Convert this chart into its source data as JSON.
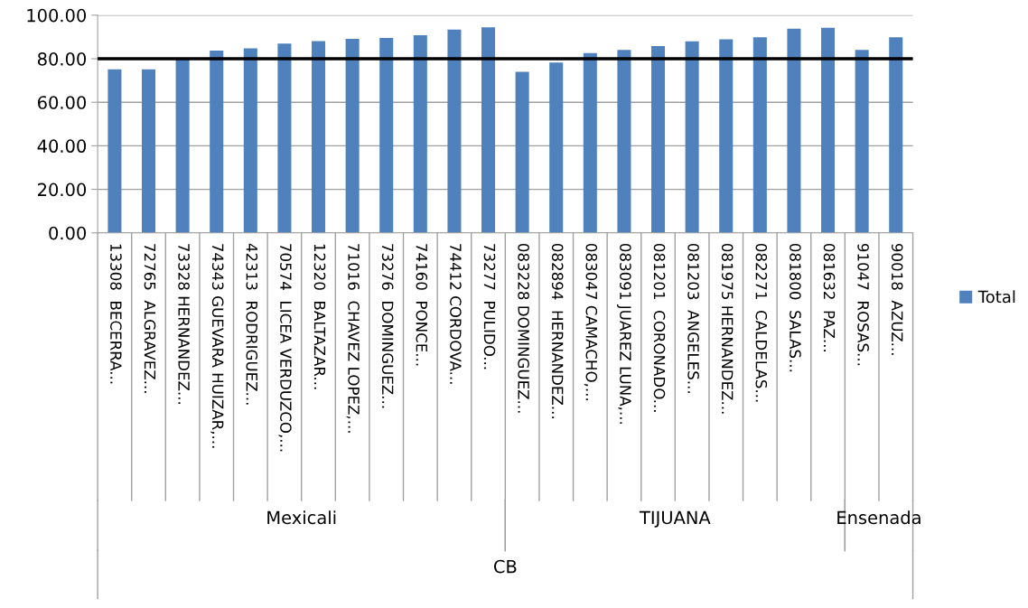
{
  "chart_data": {
    "type": "bar",
    "categories": [
      "13308  BECERRA...",
      "72765  ALGRAVEZ...",
      "73328 HERNANDEZ...",
      "74343 GUEVARA HUIZAR,...",
      "42313  RODRIGUEZ...",
      "70574  LICEA VERDUZCO,...",
      "12320  BALTAZAR...",
      "71016  CHAVEZ LOPEZ,...",
      "73276  DOMINGUEZ...",
      "74160  PONCE...",
      "74412 CORDOVA...",
      "73277  PULIDO...",
      "083228 DOMINGUEZ...",
      "082894  HERNANDEZ...",
      "083047 CAMACHO,...",
      "083091 JUAREZ LUNA,...",
      "081201  CORONADO...",
      "081203  ANGELES...",
      "081975 HERNANDEZ...",
      "082271  CALDELAS...",
      "081800  SALAS...",
      "081632  PAZ...",
      "91047  ROSAS...",
      "90018  AZUZ..."
    ],
    "series": [
      {
        "name": "Total",
        "color": "#4f81bd",
        "values": [
          75.1,
          75.1,
          79.6,
          83.7,
          84.8,
          87.0,
          88.1,
          89.1,
          89.6,
          90.8,
          93.4,
          94.4,
          74.0,
          78.2,
          82.6,
          84.1,
          85.8,
          88.0,
          88.9,
          89.9,
          93.8,
          94.2,
          84.1,
          89.9
        ]
      }
    ],
    "ylim": [
      0,
      100
    ],
    "yticks": [
      {
        "value": 0,
        "label": "0.00"
      },
      {
        "value": 20,
        "label": "20.00"
      },
      {
        "value": 40,
        "label": "40.00"
      },
      {
        "value": 60,
        "label": "60.00"
      },
      {
        "value": 80,
        "label": "80.00"
      },
      {
        "value": 100,
        "label": "100.00"
      }
    ],
    "ref_lines": [
      {
        "axis": "y",
        "value": 80,
        "color": "#000000"
      }
    ],
    "annotations": [
      "Mexicali",
      "TIJUANA",
      "Ensenada",
      "CB"
    ],
    "grid": "y",
    "legend": "right"
  }
}
